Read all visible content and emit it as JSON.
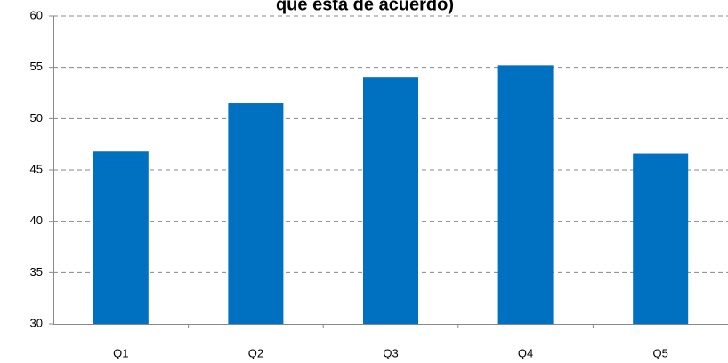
{
  "chart_data": {
    "type": "bar",
    "title": "que está de acuerdo)",
    "categories": [
      "Q1",
      "Q2",
      "Q3",
      "Q4",
      "Q5"
    ],
    "values": [
      46.8,
      51.5,
      54.0,
      55.2,
      46.6
    ],
    "color": "#0070c0",
    "ylim": [
      30,
      60
    ],
    "yticks": [
      30,
      35,
      40,
      45,
      50,
      55,
      60
    ],
    "grid": true
  }
}
